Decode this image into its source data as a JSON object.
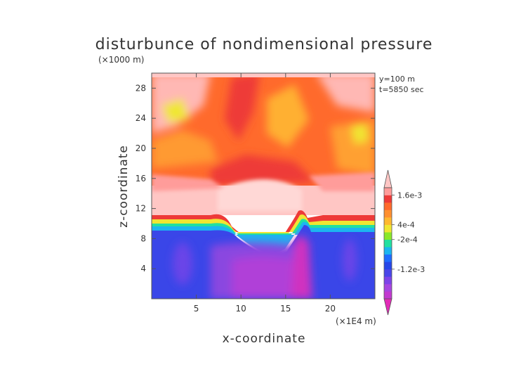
{
  "chart_data": {
    "type": "heatmap",
    "title": "disturbunce of nondimensional pressure",
    "xlabel": "x-coordinate",
    "ylabel": "z-coordinate",
    "x_unit": "(×1E4 m)",
    "y_unit": "(×1000 m)",
    "annotations": [
      "y=100  m",
      "t=5850 sec"
    ],
    "xlim": [
      0,
      25
    ],
    "ylim": [
      0,
      30
    ],
    "xticks": [
      5,
      10,
      15,
      20
    ],
    "yticks": [
      4,
      8,
      12,
      16,
      20,
      24,
      28
    ],
    "colorbar": {
      "labels": [
        {
          "level": 14,
          "text": "1.6e-3"
        },
        {
          "level": 10,
          "text": "4e-4"
        },
        {
          "level": 8,
          "text": "-2e-4"
        },
        {
          "level": 4,
          "text": "-1.2e-3"
        }
      ],
      "colors": [
        "#e22bb7",
        "#c23ad0",
        "#a646e0",
        "#7d44e8",
        "#4a46e8",
        "#2747e8",
        "#1f6cff",
        "#1cb5f0",
        "#22e0a0",
        "#8ae82a",
        "#f0e632",
        "#ffb830",
        "#ff9030",
        "#ff6a2c",
        "#ee3a38",
        "#ff9c9a",
        "#ffc6c4"
      ]
    },
    "regions": [
      {
        "name": "lower layer",
        "z_range": [
          0,
          9
        ],
        "level": 4
      },
      {
        "name": "transition layer",
        "z_range": [
          9,
          11
        ],
        "levels": [
          5,
          16
        ]
      },
      {
        "name": "middle layer",
        "z_range": [
          11,
          16
        ],
        "level": 16
      },
      {
        "name": "upper layer",
        "z_range": [
          16,
          29
        ],
        "levels": [
          11,
          15
        ]
      },
      {
        "name": "top layer",
        "z_range": [
          29,
          30
        ],
        "level": 16
      }
    ]
  }
}
